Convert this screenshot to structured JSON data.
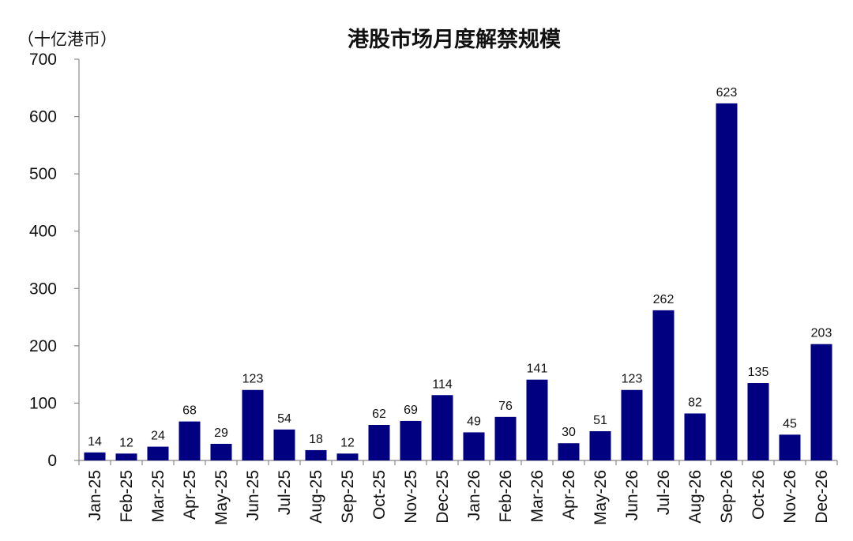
{
  "chart_data": {
    "type": "bar",
    "title": "港股市场月度解禁规模",
    "unit_label": "（十亿港币）",
    "xlabel": "",
    "ylabel": "（十亿港币）",
    "ylim": [
      0,
      700
    ],
    "yticks": [
      0,
      100,
      200,
      300,
      400,
      500,
      600,
      700
    ],
    "grid": false,
    "legend": "none",
    "bar_color": "#000080",
    "categories": [
      "Jan-25",
      "Feb-25",
      "Mar-25",
      "Apr-25",
      "May-25",
      "Jun-25",
      "Jul-25",
      "Aug-25",
      "Sep-25",
      "Oct-25",
      "Nov-25",
      "Dec-25",
      "Jan-26",
      "Feb-26",
      "Mar-26",
      "Apr-26",
      "May-26",
      "Jun-26",
      "Jul-26",
      "Aug-26",
      "Sep-26",
      "Oct-26",
      "Nov-26",
      "Dec-26"
    ],
    "values": [
      14,
      12,
      24,
      68,
      29,
      123,
      54,
      18,
      12,
      62,
      69,
      114,
      49,
      76,
      141,
      30,
      51,
      123,
      262,
      82,
      623,
      135,
      45,
      203
    ]
  }
}
